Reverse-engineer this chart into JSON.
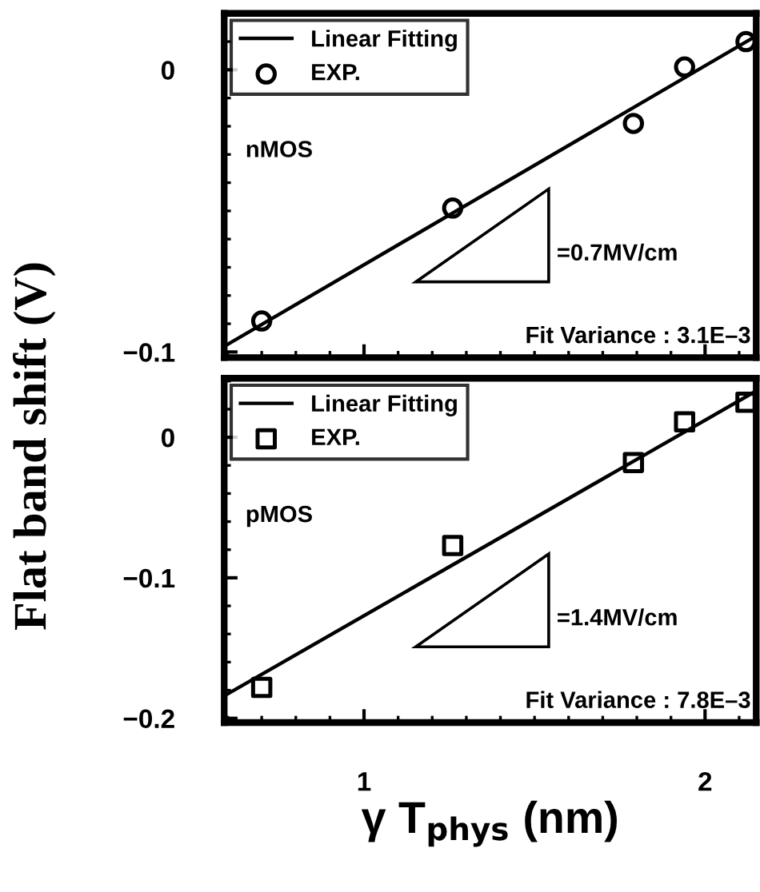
{
  "chart_data": [
    {
      "type": "scatter",
      "ylabel": "Flat band shift (V)",
      "xlim": [
        0.59,
        2.15
      ],
      "ylim": [
        -0.102,
        0.02
      ],
      "xticks": [
        1,
        2
      ],
      "yticks": [
        -0.1,
        0
      ],
      "tick_labels": "y",
      "legend": "top left",
      "annotations": [
        "nMOS",
        "=0.7MV/cm",
        "Fit Variance : 3.1E–3"
      ],
      "series": [
        {
          "name": "Linear Fitting",
          "type": "line",
          "color": "#000000",
          "x": [
            0.59,
            2.15
          ],
          "values": [
            -0.098,
            0.012
          ],
          "marker": "none",
          "line_style": "solid"
        },
        {
          "name": "EXP.",
          "color": "#000000",
          "x": [
            0.7,
            1.26,
            1.79,
            1.94,
            2.12
          ],
          "values": [
            -0.089,
            -0.049,
            -0.019,
            0.001,
            0.01
          ],
          "marker": "circle"
        }
      ]
    },
    {
      "type": "scatter",
      "xlabel": "γ T$_{phys}$ (nm)",
      "xlim": [
        0.59,
        2.15
      ],
      "ylim": [
        -0.203,
        0.042
      ],
      "xticks": [
        1,
        2
      ],
      "yticks": [
        -0.2,
        -0.1,
        0
      ],
      "legend": "top left",
      "annotations": [
        "pMOS",
        "=1.4MV/cm",
        "Fit Variance : 7.8E–3"
      ],
      "series": [
        {
          "name": "Linear Fitting",
          "type": "line",
          "color": "#000000",
          "x": [
            0.59,
            2.15
          ],
          "values": [
            -0.184,
            0.033
          ],
          "marker": "none",
          "line_style": "solid"
        },
        {
          "name": "EXP.",
          "color": "#000000",
          "x": [
            0.7,
            1.26,
            1.79,
            1.94,
            2.12
          ],
          "values": [
            -0.178,
            -0.077,
            -0.018,
            0.011,
            0.025
          ],
          "marker": "square"
        }
      ]
    }
  ]
}
